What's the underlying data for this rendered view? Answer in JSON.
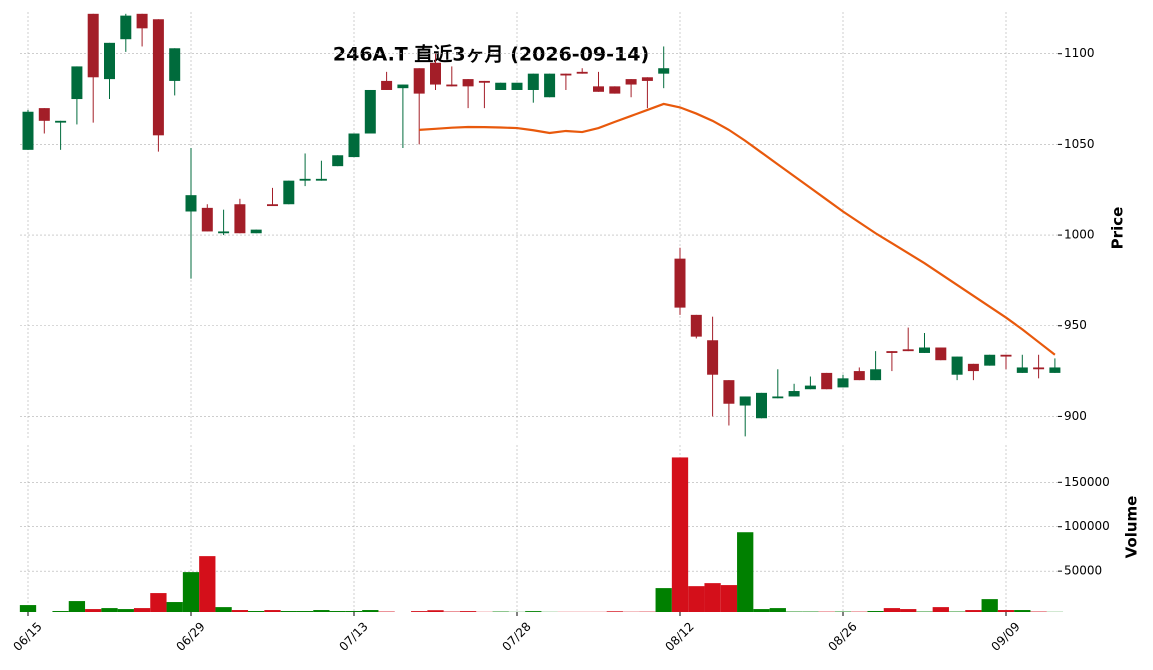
{
  "chart_data": {
    "type": "candlestick",
    "title": "246A.T 直近3ヶ月 (2026-09-14)",
    "y_label": "Price",
    "y2_label": "Volume",
    "categories": [
      "06/15",
      null,
      null,
      null,
      null,
      null,
      null,
      null,
      null,
      null,
      "06/29",
      null,
      null,
      null,
      null,
      null,
      null,
      null,
      null,
      null,
      "07/13",
      null,
      null,
      null,
      null,
      null,
      null,
      null,
      null,
      null,
      "07/28",
      null,
      null,
      null,
      null,
      null,
      null,
      null,
      null,
      null,
      "08/12",
      null,
      null,
      null,
      null,
      null,
      null,
      null,
      null,
      null,
      "08/26",
      null,
      null,
      null,
      null,
      null,
      null,
      null,
      null,
      null,
      "09/09",
      null,
      null,
      null
    ],
    "open": [
      1047,
      1070,
      1062,
      1075,
      1122,
      1086,
      1108,
      1122,
      1119,
      1085,
      1013,
      1015,
      1001,
      1017,
      1001,
      1017,
      1017,
      1030,
      1030,
      1038,
      1043,
      1056,
      1085,
      1081,
      1092,
      1095,
      1083,
      1086,
      1085,
      1080,
      1080,
      1080,
      1076,
      1089,
      1090,
      1082,
      1082,
      1086,
      1087,
      1089,
      987,
      956,
      942,
      920,
      906,
      899,
      910,
      911,
      915,
      924,
      916,
      925,
      920,
      936,
      937,
      935,
      938,
      923,
      929,
      928,
      934,
      924,
      927,
      924
    ],
    "high": [
      1069,
      1070,
      1063,
      1093,
      1122,
      1106,
      1122,
      1122,
      1119,
      1103,
      1048,
      1017,
      1014,
      1020,
      1003,
      1026,
      1030,
      1045,
      1041,
      1044,
      1056,
      1080,
      1090,
      1083,
      1092,
      1100,
      1093,
      1086,
      1085,
      1084,
      1084,
      1089,
      1089,
      1089,
      1092,
      1090,
      1082,
      1086,
      1087,
      1104,
      993,
      956,
      955,
      920,
      911,
      913,
      926,
      918,
      922,
      924,
      923,
      927,
      936,
      936,
      949,
      946,
      938,
      933,
      929,
      934,
      934,
      934,
      934,
      932
    ],
    "low": [
      1047,
      1056,
      1047,
      1061,
      1062,
      1075,
      1101,
      1104,
      1046,
      1077,
      976,
      1002,
      1000,
      1001,
      1001,
      1016,
      1017,
      1027,
      1030,
      1038,
      1043,
      1056,
      1080,
      1048,
      1050,
      1080,
      1082,
      1070,
      1070,
      1080,
      1080,
      1073,
      1076,
      1080,
      1089,
      1079,
      1078,
      1076,
      1070,
      1081,
      956,
      943,
      900,
      895,
      889,
      899,
      910,
      911,
      915,
      915,
      916,
      920,
      920,
      925,
      936,
      935,
      931,
      920,
      920,
      928,
      926,
      924,
      921,
      924
    ],
    "close": [
      1068,
      1063,
      1063,
      1093,
      1087,
      1106,
      1121,
      1114,
      1055,
      1103,
      1022,
      1002,
      1002,
      1001,
      1003,
      1016,
      1030,
      1031,
      1031,
      1044,
      1056,
      1080,
      1080,
      1083,
      1078,
      1083,
      1082,
      1082,
      1084,
      1084,
      1084,
      1089,
      1089,
      1088,
      1089,
      1079,
      1078,
      1083,
      1085,
      1092,
      960,
      944,
      923,
      907,
      911,
      913,
      911,
      914,
      917,
      915,
      921,
      920,
      926,
      935,
      936,
      938,
      931,
      933,
      925,
      934,
      933,
      927,
      926,
      927
    ],
    "volume": [
      11800,
      4000,
      5100,
      16300,
      7300,
      8400,
      7300,
      8400,
      25300,
      15200,
      48900,
      66900,
      9500,
      6200,
      5100,
      6200,
      5100,
      5100,
      6200,
      5100,
      5100,
      6200,
      4500,
      4000,
      5000,
      6000,
      4500,
      5000,
      4200,
      4500,
      4200,
      5000,
      4200,
      4200,
      4200,
      4200,
      4800,
      4300,
      4400,
      30900,
      178000,
      33100,
      36500,
      34300,
      93800,
      7300,
      8400,
      4500,
      4500,
      4400,
      4500,
      4400,
      5100,
      8400,
      7300,
      4500,
      9500,
      4500,
      6200,
      18500,
      6200,
      6200,
      4500,
      4200
    ],
    "ma": {
      "color": "#e8590c",
      "values": [
        null,
        null,
        null,
        null,
        null,
        null,
        null,
        null,
        null,
        null,
        null,
        null,
        null,
        null,
        null,
        null,
        null,
        null,
        null,
        null,
        null,
        null,
        null,
        null,
        1058,
        1058.6,
        1059.2,
        1059.6,
        1059.5,
        1059.3,
        1059,
        1057.8,
        1056.3,
        1057.4,
        1056.8,
        1059,
        1062.4,
        1065.7,
        1069,
        1072.3,
        1070.4,
        1067,
        1063,
        1058,
        1052,
        1045.5,
        1039,
        1032.5,
        1026,
        1019.5,
        1013,
        1007,
        1001,
        995.5,
        990,
        984.5,
        978.5,
        972.5,
        966.5,
        960.5,
        954.5,
        948,
        941,
        934
      ]
    },
    "up_color": "#006b3c",
    "down_color": "#a31e28",
    "volume_up_color": "#008000",
    "volume_down_color": "#d40f1a",
    "ylim": [
      887,
      1123
    ],
    "yticks": [
      900,
      950,
      1000,
      1050,
      1100
    ],
    "y2lim": [
      4000,
      192000
    ],
    "y2ticks": [
      50000,
      100000,
      150000
    ],
    "grid": true
  }
}
